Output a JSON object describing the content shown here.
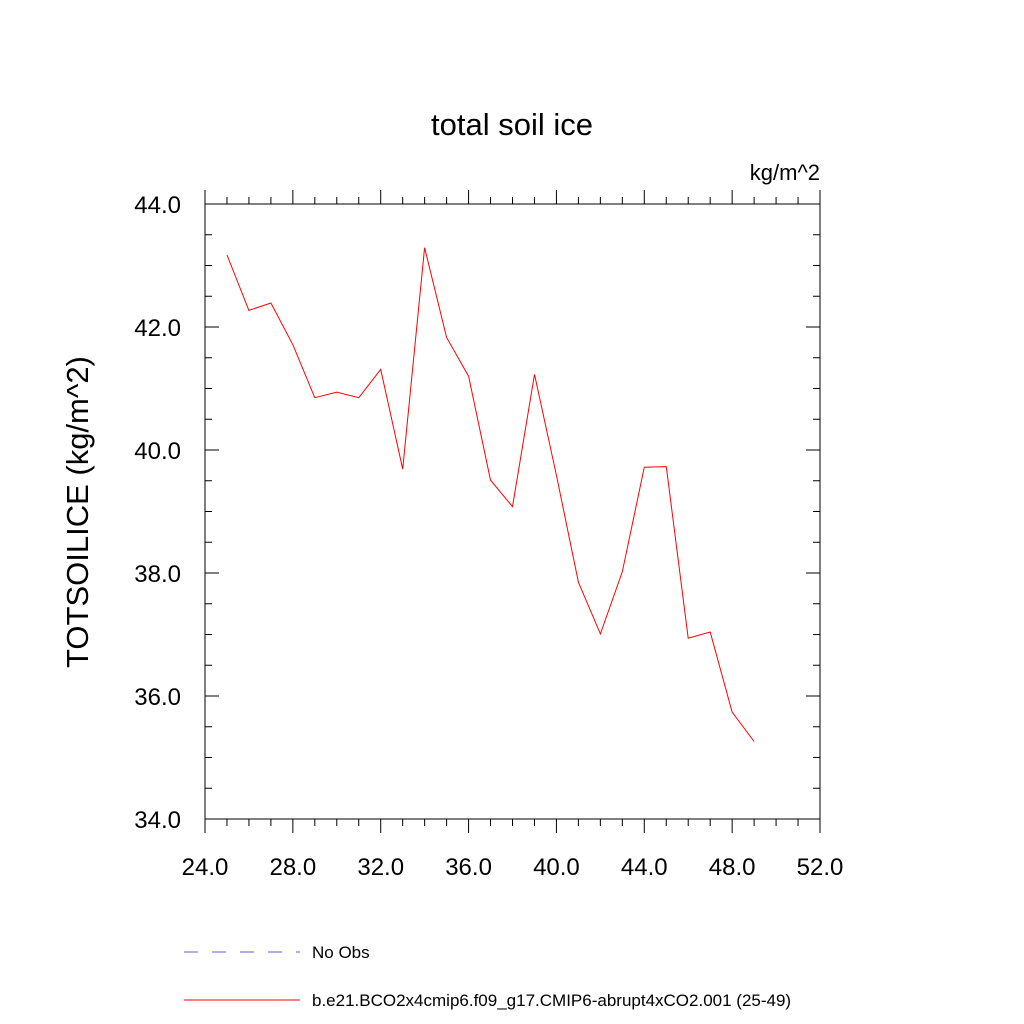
{
  "chart_data": {
    "type": "line",
    "title": "total soil ice",
    "units_label": "kg/m^2",
    "ylabel": "TOTSOILICE  (kg/m^2)",
    "xlabel": "",
    "xlim": [
      24,
      52
    ],
    "ylim": [
      34,
      44
    ],
    "x_ticks": [
      "24.0",
      "28.0",
      "32.0",
      "36.0",
      "40.0",
      "44.0",
      "48.0",
      "52.0"
    ],
    "y_ticks": [
      "34.0",
      "36.0",
      "38.0",
      "40.0",
      "42.0",
      "44.0"
    ],
    "grid": false,
    "legend_position": "bottom",
    "series": [
      {
        "name": "b.e21.BCO2x4cmip6.f09_g17.CMIP6-abrupt4xCO2.001 (25-49)",
        "color": "#ff0000",
        "style": "solid",
        "x": [
          25,
          26,
          27,
          28,
          29,
          30,
          31,
          32,
          33,
          34,
          35,
          36,
          37,
          38,
          39,
          40,
          41,
          42,
          43,
          44,
          45,
          46,
          47,
          48,
          49
        ],
        "y": [
          43.17,
          42.27,
          42.39,
          41.71,
          40.85,
          40.94,
          40.85,
          41.31,
          39.69,
          43.29,
          41.83,
          41.2,
          39.51,
          39.08,
          41.23,
          39.59,
          37.85,
          37.01,
          38.02,
          39.72,
          39.73,
          36.94,
          37.04,
          35.74,
          35.26
        ]
      }
    ],
    "legend": [
      {
        "label": "No Obs",
        "color": "#6a5acd",
        "style": "dashed"
      },
      {
        "label": "b.e21.BCO2x4cmip6.f09_g17.CMIP6-abrupt4xCO2.001 (25-49)",
        "color": "#ff0000",
        "style": "solid"
      }
    ]
  }
}
